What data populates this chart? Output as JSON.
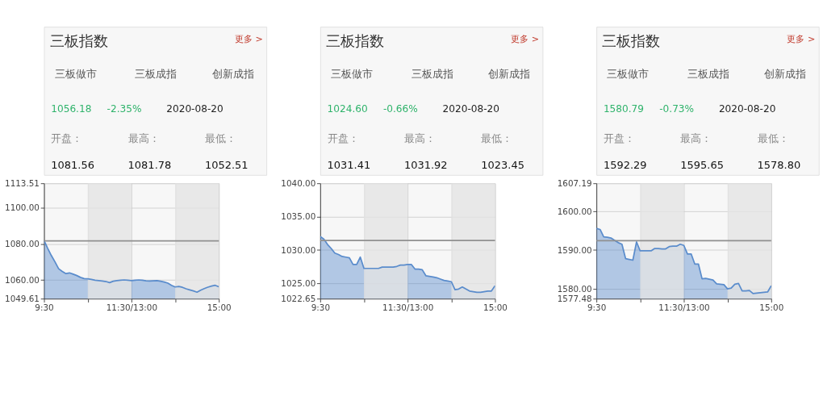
{
  "chart_data": [
    {
      "type": "area",
      "title": "三板指数",
      "annotations": [
        "更多 >",
        "三板做市",
        "三板成指",
        "创新成指",
        "1056.18",
        "-2.35%",
        "2020-08-20",
        "开盘：",
        "最高：",
        "最低：",
        "1081.56",
        "1081.78",
        "1052.51"
      ],
      "categories": [
        "9:30",
        null,
        null,
        null,
        null,
        null,
        null,
        null,
        null,
        null,
        null,
        null,
        null,
        null,
        null,
        null,
        null,
        null,
        null,
        null,
        null,
        null,
        null,
        null,
        "11:30/13:00",
        null,
        null,
        null,
        null,
        null,
        null,
        null,
        null,
        null,
        null,
        null,
        null,
        null,
        null,
        null,
        null,
        null,
        null,
        null,
        null,
        null,
        null,
        null,
        "15:00"
      ],
      "ylim": [
        1049.61,
        1113.51
      ],
      "yticks": [
        1049.61,
        {
          "value": 1060,
          "label": "1060.00"
        },
        {
          "value": 1080,
          "label": "1080.00"
        },
        {
          "value": 1100,
          "label": "1100.00"
        },
        1113.51
      ],
      "grid": true,
      "ref_lines": [
        {
          "axis": "y",
          "value": 1081.6,
          "color": "#909090"
        }
      ],
      "series": [
        {
          "color": "#5a8ccc",
          "values": [
            1081.8,
            1077.5,
            1073.5,
            1070,
            1066.2,
            1064.7,
            1063.5,
            1063.9,
            1063.2,
            1062.4,
            1061.4,
            1060.7,
            1060.6,
            1060.3,
            1059.8,
            1059.6,
            1059.4,
            1059.1,
            1058.5,
            1059.3,
            1059.6,
            1059.8,
            1060,
            1059.8,
            1059.6,
            1059.8,
            1060,
            1059.8,
            1059.5,
            1059.4,
            1059.5,
            1059.6,
            1059.3,
            1058.8,
            1058.2,
            1057,
            1056.1,
            1056.4,
            1055.9,
            1055.1,
            1054.5,
            1053.9,
            1053.2,
            1054.3,
            1055.2,
            1056,
            1056.6,
            1057,
            1056.2
          ]
        }
      ]
    },
    {
      "type": "area",
      "title": "三板指数",
      "annotations": [
        "更多 >",
        "三板做市",
        "三板成指",
        "创新成指",
        "1024.60",
        "-0.66%",
        "2020-08-20",
        "开盘：",
        "最高：",
        "最低：",
        "1031.41",
        "1031.92",
        "1023.45"
      ],
      "categories": [
        "9:30",
        null,
        null,
        null,
        null,
        null,
        null,
        null,
        null,
        null,
        null,
        null,
        null,
        null,
        null,
        null,
        null,
        null,
        null,
        null,
        null,
        null,
        null,
        null,
        "11:30/13:00",
        null,
        null,
        null,
        null,
        null,
        null,
        null,
        null,
        null,
        null,
        null,
        null,
        null,
        null,
        null,
        null,
        null,
        null,
        null,
        null,
        null,
        null,
        null,
        "15:00"
      ],
      "ylim": [
        1022.65,
        1040
      ],
      "yticks": [
        1022.65,
        {
          "value": 1025,
          "label": "1025.00"
        },
        {
          "value": 1030,
          "label": "1030.00"
        },
        {
          "value": 1035,
          "label": "1035.00"
        },
        {
          "value": 1040,
          "label": "1040.00"
        }
      ],
      "grid": true,
      "ref_lines": [
        {
          "axis": "y",
          "value": 1031.4,
          "color": "#909090"
        }
      ],
      "series": [
        {
          "color": "#5a8ccc",
          "values": [
            1032.0,
            1031.6,
            1030.8,
            1030.2,
            1029.5,
            1029.3,
            1029.0,
            1028.9,
            1028.8,
            1027.8,
            1027.8,
            1028.9,
            1027.2,
            1027.2,
            1027.2,
            1027.2,
            1027.2,
            1027.4,
            1027.4,
            1027.4,
            1027.4,
            1027.5,
            1027.7,
            1027.7,
            1027.8,
            1027.8,
            1027.1,
            1027.1,
            1027.0,
            1026.1,
            1026.0,
            1025.9,
            1025.8,
            1025.6,
            1025.4,
            1025.3,
            1025.2,
            1024.0,
            1024.1,
            1024.4,
            1024.1,
            1023.8,
            1023.7,
            1023.6,
            1023.6,
            1023.7,
            1023.8,
            1023.8,
            1024.6
          ]
        }
      ]
    },
    {
      "type": "area",
      "title": "三板指数",
      "annotations": [
        "更多 >",
        "三板做市",
        "三板成指",
        "创新成指",
        "1580.79",
        "-0.73%",
        "2020-08-20",
        "开盘：",
        "最高：",
        "最低：",
        "1592.29",
        "1595.65",
        "1578.80"
      ],
      "categories": [
        "9:30",
        null,
        null,
        null,
        null,
        null,
        null,
        null,
        null,
        null,
        null,
        null,
        null,
        null,
        null,
        null,
        null,
        null,
        null,
        null,
        null,
        null,
        null,
        null,
        "11:30/13:00",
        null,
        null,
        null,
        null,
        null,
        null,
        null,
        null,
        null,
        null,
        null,
        null,
        null,
        null,
        null,
        null,
        null,
        null,
        null,
        null,
        null,
        null,
        null,
        "15:00"
      ],
      "ylim": [
        1577.48,
        1607.19
      ],
      "yticks": [
        1577.48,
        {
          "value": 1580,
          "label": "1580.00"
        },
        {
          "value": 1590,
          "label": "1590.00"
        },
        {
          "value": 1600,
          "label": "1600.00"
        },
        1607.19
      ],
      "grid": true,
      "ref_lines": [
        {
          "axis": "y",
          "value": 1592.4,
          "color": "#909090"
        }
      ],
      "series": [
        {
          "color": "#5a8ccc",
          "values": [
            1595.6,
            1595.3,
            1593.4,
            1593.3,
            1593.1,
            1592.5,
            1591.9,
            1591.5,
            1587.8,
            1587.6,
            1587.4,
            1592.1,
            1589.8,
            1589.8,
            1589.8,
            1589.8,
            1590.4,
            1590.4,
            1590.3,
            1590.3,
            1590.9,
            1591.0,
            1591.0,
            1591.5,
            1591.2,
            1589.0,
            1589.0,
            1586.4,
            1586.4,
            1582.6,
            1582.7,
            1582.5,
            1582.3,
            1581.3,
            1581.2,
            1581.1,
            1580.0,
            1580.2,
            1581.2,
            1581.4,
            1579.5,
            1579.5,
            1579.6,
            1578.8,
            1578.9,
            1579.0,
            1579.1,
            1579.2,
            1580.8
          ]
        }
      ]
    }
  ]
}
